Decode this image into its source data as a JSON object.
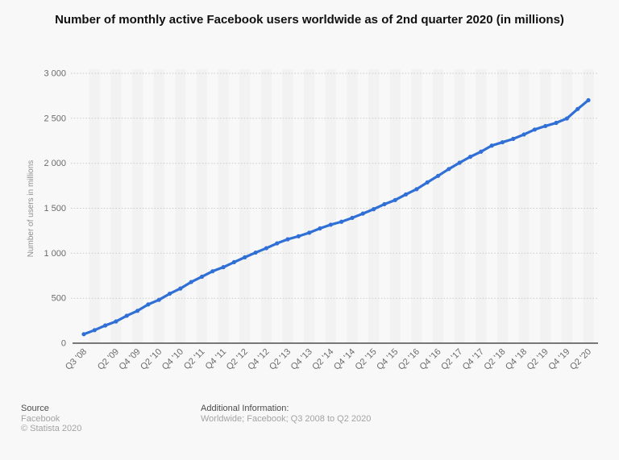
{
  "title": "Number of monthly active Facebook users worldwide as of 2nd quarter 2020 (in millions)",
  "chart_data": {
    "type": "line",
    "title": "Number of monthly active Facebook users worldwide as of 2nd quarter 2020 (in millions)",
    "x": [
      "Q3 '08",
      "Q4 '08",
      "Q1 '09",
      "Q2 '09",
      "Q3 '09",
      "Q4 '09",
      "Q1 '10",
      "Q2 '10",
      "Q3 '10",
      "Q4 '10",
      "Q1 '11",
      "Q2 '11",
      "Q3 '11",
      "Q4 '11",
      "Q1 '12",
      "Q2 '12",
      "Q3 '12",
      "Q4 '12",
      "Q1 '13",
      "Q2 '13",
      "Q3 '13",
      "Q4 '13",
      "Q1 '14",
      "Q2 '14",
      "Q3 '14",
      "Q4 '14",
      "Q1 '15",
      "Q2 '15",
      "Q3 '15",
      "Q4 '15",
      "Q1 '16",
      "Q2 '16",
      "Q3 '16",
      "Q4 '16",
      "Q1 '17",
      "Q2 '17",
      "Q3 '17",
      "Q4 '17",
      "Q1 '18",
      "Q2 '18",
      "Q3 '18",
      "Q4 '18",
      "Q1 '19",
      "Q2 '19",
      "Q3 '19",
      "Q4 '19",
      "Q1 '20",
      "Q2 '20"
    ],
    "values": [
      100,
      145,
      197,
      242,
      305,
      360,
      431,
      482,
      550,
      608,
      680,
      739,
      800,
      845,
      901,
      955,
      1007,
      1056,
      1110,
      1155,
      1189,
      1228,
      1276,
      1317,
      1350,
      1393,
      1441,
      1490,
      1545,
      1591,
      1654,
      1712,
      1788,
      1860,
      1936,
      2006,
      2072,
      2129,
      2196,
      2234,
      2271,
      2320,
      2375,
      2414,
      2449,
      2498,
      2603,
      2701
    ],
    "x_tick_labels": [
      "Q3 '08",
      "Q2 '09",
      "Q4 '09",
      "Q2 '10",
      "Q4 '10",
      "Q2 '11",
      "Q4 '11",
      "Q2 '12",
      "Q4 '12",
      "Q2 '13",
      "Q4 '13",
      "Q2 '14",
      "Q4 '14",
      "Q2 '15",
      "Q4 '15",
      "Q2 '16",
      "Q4 '16",
      "Q2 '17",
      "Q4 '17",
      "Q2 '18",
      "Q4 '18",
      "Q2 '19",
      "Q4 '19",
      "Q2 '20"
    ],
    "x_tick_indices": [
      0,
      3,
      5,
      7,
      9,
      11,
      13,
      15,
      17,
      19,
      21,
      23,
      25,
      27,
      29,
      31,
      33,
      35,
      37,
      39,
      41,
      43,
      45,
      47
    ],
    "y_ticks": [
      0,
      500,
      1000,
      1500,
      2000,
      2500,
      3000
    ],
    "y_tick_labels": [
      "0",
      "500",
      "1 000",
      "1 500",
      "2 000",
      "2 500",
      "3 000"
    ],
    "ylabel": "Number of users in millions",
    "xlabel": "",
    "ylim": [
      0,
      3000
    ],
    "legend": "none",
    "grid": "horizontal-dotted",
    "line_color": "#2f6fd6",
    "band_color": "#ededed",
    "grid_color": "#c9c9c9",
    "axis_color": "#4d4d4d",
    "tick_text_color": "#6b6b6b",
    "axis_title_color": "#8f8f8f"
  },
  "footer": {
    "source_label": "Source",
    "source_value": "Facebook",
    "copyright": "© Statista 2020",
    "additional_label": "Additional Information:",
    "additional_value": "Worldwide; Facebook; Q3 2008 to Q2 2020"
  }
}
